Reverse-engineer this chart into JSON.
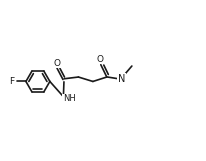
{
  "bg_color": "#ffffff",
  "line_color": "#1a1a1a",
  "lw": 1.2,
  "fs": 6.0,
  "figsize": [
    2.07,
    1.61
  ],
  "dpi": 100,
  "xlim": [
    0,
    10.5
  ],
  "ylim": [
    0,
    8.2
  ]
}
